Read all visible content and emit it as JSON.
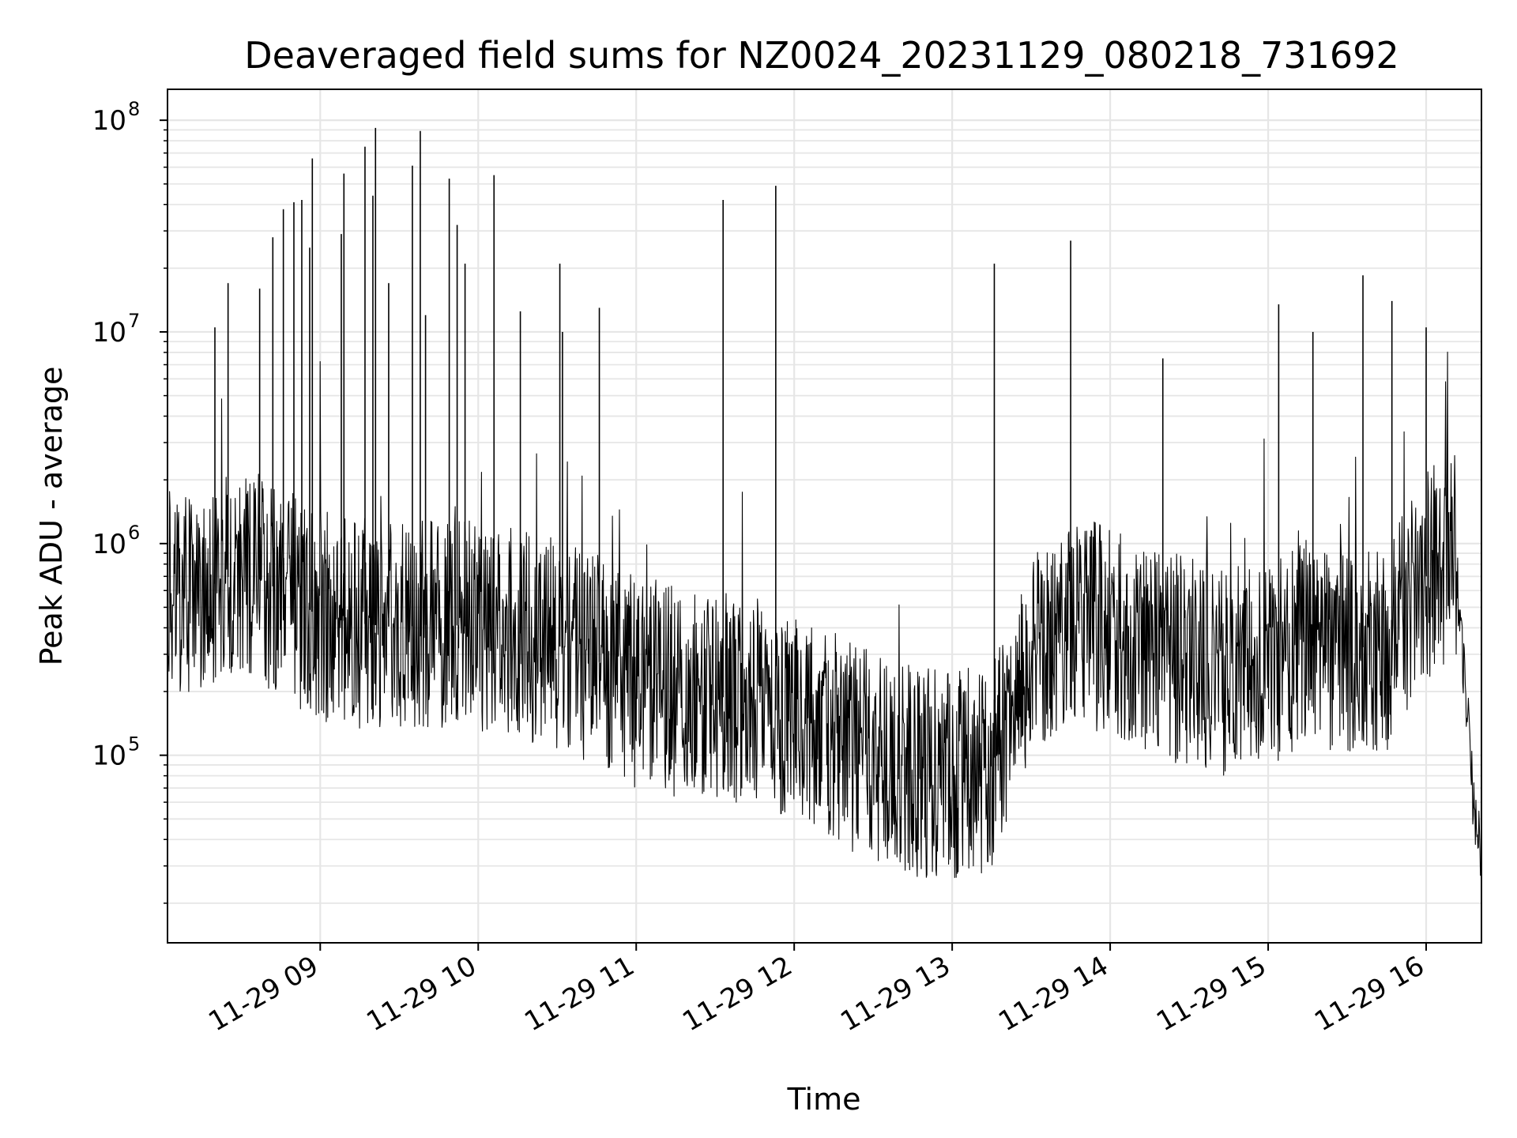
{
  "chart_data": {
    "type": "line",
    "title": "Deaveraged field sums for NZ0024_20231129_080218_731692",
    "xlabel": "Time",
    "ylabel": "Peak ADU - average",
    "y_scale": "log",
    "grid": true,
    "line_color": "#000000",
    "grid_color": "#e6e6e6",
    "xlim": [
      "11-29 08:02",
      "11-29 16:21"
    ],
    "ylim": [
      13000,
      140000000
    ],
    "x_ticks": [
      "11-29 09",
      "11-29 10",
      "11-29 11",
      "11-29 12",
      "11-29 13",
      "11-29 14",
      "11-29 15",
      "11-29 16"
    ],
    "y_ticks": [
      {
        "value": 100000,
        "base": "10",
        "exp": "5"
      },
      {
        "value": 1000000,
        "base": "10",
        "exp": "6"
      },
      {
        "value": 10000000,
        "base": "10",
        "exp": "7"
      },
      {
        "value": 100000000,
        "base": "10",
        "exp": "8"
      }
    ],
    "series": [
      {
        "x": [
          "11-29 08:02",
          "11-29 08:15",
          "11-29 08:30",
          "11-29 08:45",
          "11-29 09:00",
          "11-29 09:15",
          "11-29 09:30",
          "11-29 09:45",
          "11-29 10:00",
          "11-29 10:15",
          "11-29 10:30",
          "11-29 10:45",
          "11-29 11:00",
          "11-29 11:15",
          "11-29 11:30",
          "11-29 11:45",
          "11-29 12:00",
          "11-29 12:15",
          "11-29 12:30",
          "11-29 12:45",
          "11-29 13:00",
          "11-29 13:15",
          "11-29 13:30",
          "11-29 13:45",
          "11-29 14:00",
          "11-29 14:15",
          "11-29 14:30",
          "11-29 14:45",
          "11-29 15:00",
          "11-29 15:15",
          "11-29 15:30",
          "11-29 15:45",
          "11-29 16:00",
          "11-29 16:10",
          "11-29 16:15",
          "11-29 16:18",
          "11-29 16:21"
        ],
        "y": [
          560000,
          600000,
          750000,
          600000,
          450000,
          420000,
          400000,
          420000,
          400000,
          380000,
          330000,
          280000,
          220000,
          200000,
          190000,
          180000,
          150000,
          120000,
          100000,
          85000,
          80000,
          90000,
          300000,
          450000,
          380000,
          300000,
          280000,
          250000,
          280000,
          330000,
          320000,
          330000,
          700000,
          900000,
          200000,
          60000,
          35000
        ]
      }
    ],
    "spikes": [
      {
        "x": "11-29 08:20",
        "y": 10500000
      },
      {
        "x": "11-29 08:25",
        "y": 17000000
      },
      {
        "x": "11-29 08:37",
        "y": 16000000
      },
      {
        "x": "11-29 08:42",
        "y": 28000000
      },
      {
        "x": "11-29 08:46",
        "y": 38000000
      },
      {
        "x": "11-29 08:50",
        "y": 41000000
      },
      {
        "x": "11-29 08:53",
        "y": 42000000
      },
      {
        "x": "11-29 08:56",
        "y": 25000000
      },
      {
        "x": "11-29 08:57",
        "y": 66000000
      },
      {
        "x": "11-29 09:08",
        "y": 29000000
      },
      {
        "x": "11-29 09:09",
        "y": 56000000
      },
      {
        "x": "11-29 09:17",
        "y": 75000000
      },
      {
        "x": "11-29 09:20",
        "y": 44000000
      },
      {
        "x": "11-29 09:21",
        "y": 92000000
      },
      {
        "x": "11-29 09:26",
        "y": 17000000
      },
      {
        "x": "11-29 09:35",
        "y": 61000000
      },
      {
        "x": "11-29 09:38",
        "y": 89000000
      },
      {
        "x": "11-29 09:40",
        "y": 12000000
      },
      {
        "x": "11-29 09:49",
        "y": 53000000
      },
      {
        "x": "11-29 09:52",
        "y": 32000000
      },
      {
        "x": "11-29 09:55",
        "y": 21000000
      },
      {
        "x": "11-29 10:06",
        "y": 55000000
      },
      {
        "x": "11-29 10:16",
        "y": 12500000
      },
      {
        "x": "11-29 10:31",
        "y": 21000000
      },
      {
        "x": "11-29 10:32",
        "y": 10000000
      },
      {
        "x": "11-29 10:46",
        "y": 13000000
      },
      {
        "x": "11-29 11:33",
        "y": 42000000
      },
      {
        "x": "11-29 11:53",
        "y": 49000000
      },
      {
        "x": "11-29 13:16",
        "y": 21000000
      },
      {
        "x": "11-29 13:45",
        "y": 27000000
      },
      {
        "x": "11-29 14:20",
        "y": 7500000
      },
      {
        "x": "11-29 15:04",
        "y": 13500000
      },
      {
        "x": "11-29 15:17",
        "y": 10000000
      },
      {
        "x": "11-29 15:36",
        "y": 18500000
      },
      {
        "x": "11-29 15:47",
        "y": 14000000
      },
      {
        "x": "11-29 16:00",
        "y": 10500000
      }
    ]
  }
}
